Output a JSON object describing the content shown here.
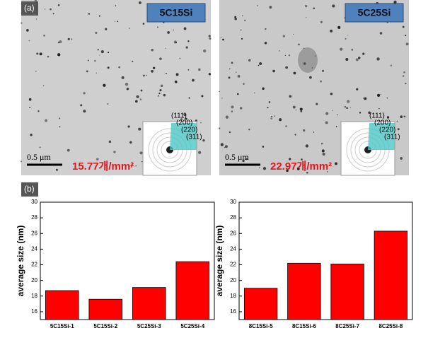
{
  "panels": {
    "a": "(a)",
    "b": "(b)"
  },
  "images": [
    {
      "sample": "5C15Si",
      "scale": "0.5 μm",
      "density": "15.77개/mm²",
      "rings": [
        "(111)",
        "(200)",
        "(220)",
        "(311)"
      ]
    },
    {
      "sample": "5C25Si",
      "scale": "0.5 μm",
      "density": "22.97개/mm²",
      "rings": [
        "(111)",
        "(200)",
        "(220)",
        "(311)"
      ]
    }
  ],
  "chart_data": [
    {
      "type": "bar",
      "y_label": "average size (nm)",
      "categories": [
        "5C15Si-1",
        "5C15Si-2",
        "5C25Si-3",
        "5C25Si-4"
      ],
      "values": [
        18.7,
        17.6,
        19.1,
        22.4
      ],
      "color": "#ff0000",
      "ylim": [
        15,
        30
      ],
      "yticks": [
        16,
        18,
        20,
        22,
        24,
        26,
        28,
        30
      ]
    },
    {
      "type": "bar",
      "y_label": "average size (nm)",
      "categories": [
        "8C15Si-5",
        "8C15Si-6",
        "8C25Si-7",
        "8C25Si-8"
      ],
      "values": [
        19.0,
        22.2,
        22.1,
        26.3
      ],
      "color": "#ff0000",
      "ylim": [
        15,
        30
      ],
      "yticks": [
        16,
        18,
        20,
        22,
        24,
        26,
        28,
        30
      ]
    }
  ]
}
